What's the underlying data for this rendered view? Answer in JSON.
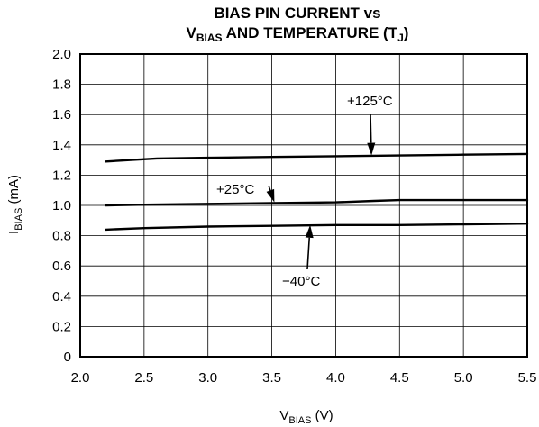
{
  "chart_data": {
    "type": "line",
    "title_line1": "BIAS PIN CURRENT vs",
    "title_line2": {
      "v": "V",
      "sub": "BIAS",
      "rest": " AND TEMPERATURE (T",
      "sub2": "J",
      "close": ")"
    },
    "xlabel": {
      "main": "V",
      "sub": "BIAS",
      "unit": " (V)"
    },
    "ylabel": {
      "main": "I",
      "sub": "BIAS",
      "unit": " (mA)"
    },
    "xlim": [
      2.0,
      5.5
    ],
    "ylim": [
      0,
      2.0
    ],
    "xticks": [
      "2.0",
      "2.5",
      "3.0",
      "3.5",
      "4.0",
      "4.5",
      "5.0",
      "5.5"
    ],
    "yticks": [
      "0",
      "0.2",
      "0.4",
      "0.6",
      "0.8",
      "1.0",
      "1.2",
      "1.4",
      "1.6",
      "1.8",
      "2.0"
    ],
    "grid": true,
    "series": [
      {
        "name": "+125°C",
        "x": [
          2.2,
          2.4,
          2.6,
          3.0,
          3.5,
          4.0,
          4.5,
          5.0,
          5.5
        ],
        "y": [
          1.29,
          1.3,
          1.31,
          1.315,
          1.32,
          1.325,
          1.33,
          1.335,
          1.34
        ]
      },
      {
        "name": "+25°C",
        "x": [
          2.2,
          2.5,
          3.0,
          3.5,
          4.0,
          4.3,
          4.5,
          5.0,
          5.5
        ],
        "y": [
          1.0,
          1.005,
          1.01,
          1.015,
          1.02,
          1.03,
          1.035,
          1.035,
          1.035
        ]
      },
      {
        "name": "−40°C",
        "x": [
          2.2,
          2.5,
          3.0,
          3.5,
          4.0,
          4.5,
          5.0,
          5.5
        ],
        "y": [
          0.84,
          0.85,
          0.86,
          0.865,
          0.87,
          0.87,
          0.875,
          0.88
        ]
      }
    ],
    "annotations": [
      {
        "text": "+125°C",
        "arrow_to": {
          "x": 4.28,
          "y": 1.33
        }
      },
      {
        "text": "+25°C",
        "arrow_to": {
          "x": 3.52,
          "y": 1.02
        }
      },
      {
        "text": "−40°C",
        "arrow_to": {
          "x": 3.8,
          "y": 0.87
        }
      }
    ]
  }
}
